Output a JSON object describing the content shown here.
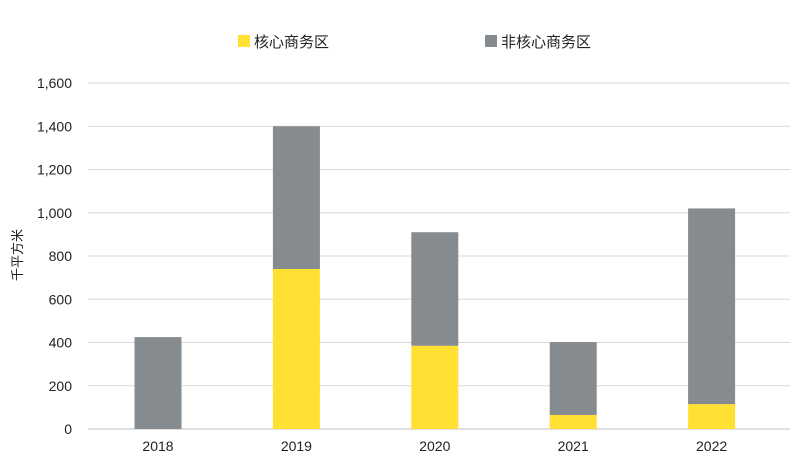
{
  "chart_data": {
    "type": "bar",
    "stacked": true,
    "categories": [
      "2018",
      "2019",
      "2020",
      "2021",
      "2022"
    ],
    "series": [
      {
        "name": "核心商务区",
        "color": "#ffe033",
        "values": [
          0,
          740,
          385,
          65,
          115
        ]
      },
      {
        "name": "非核心商务区",
        "color": "#868b90",
        "values": [
          425,
          660,
          525,
          337,
          905
        ]
      }
    ],
    "title": "",
    "xlabel": "",
    "ylabel": "千平方米",
    "ylim": [
      0,
      1600
    ],
    "yticks": [
      0,
      200,
      400,
      600,
      800,
      1000,
      1200,
      1400,
      1600
    ],
    "ytick_labels": [
      "0",
      "200",
      "400",
      "600",
      "800",
      "1,000",
      "1,200",
      "1,400",
      "1,600"
    ],
    "grid": true,
    "legend_position": "top"
  }
}
